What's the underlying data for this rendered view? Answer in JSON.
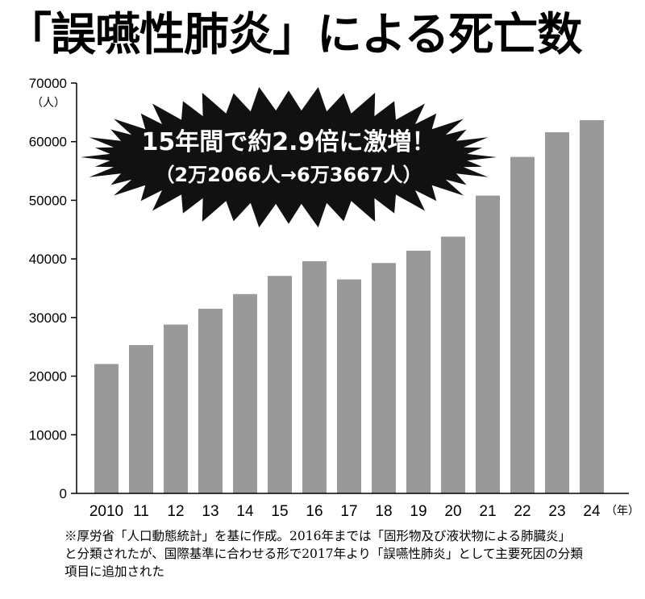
{
  "title": "「誤嚥性肺炎」による死亡数",
  "chart_data": {
    "type": "bar",
    "categories": [
      "2010",
      "11",
      "12",
      "13",
      "14",
      "15",
      "16",
      "17",
      "18",
      "19",
      "20",
      "21",
      "22",
      "23",
      "24"
    ],
    "values": [
      22066,
      25300,
      28800,
      31500,
      34000,
      37100,
      39600,
      36500,
      39300,
      41400,
      43800,
      50800,
      57400,
      61600,
      63667
    ],
    "ylim": [
      0,
      70000
    ],
    "yticks": [
      0,
      10000,
      20000,
      30000,
      40000,
      50000,
      60000,
      70000
    ],
    "yunit": "（人）",
    "xunit": "（年）",
    "grid": false,
    "bar_color": "#999999",
    "annotation": {
      "line1": "15年間で約2.9倍に激増！",
      "line2": "（2万2066人→6万3667人）",
      "burst_color": "#111111",
      "text_color": "#ffffff"
    }
  },
  "footnote": {
    "line1": "※厚労省「人口動態統計」を基に作成。2016年までは「固形物及び液状物による肺臓炎」",
    "line2": "と分類されたが、国際基準に合わせる形で2017年より「誤嚥性肺炎」として主要死因の分類",
    "line3": "項目に追加された"
  }
}
